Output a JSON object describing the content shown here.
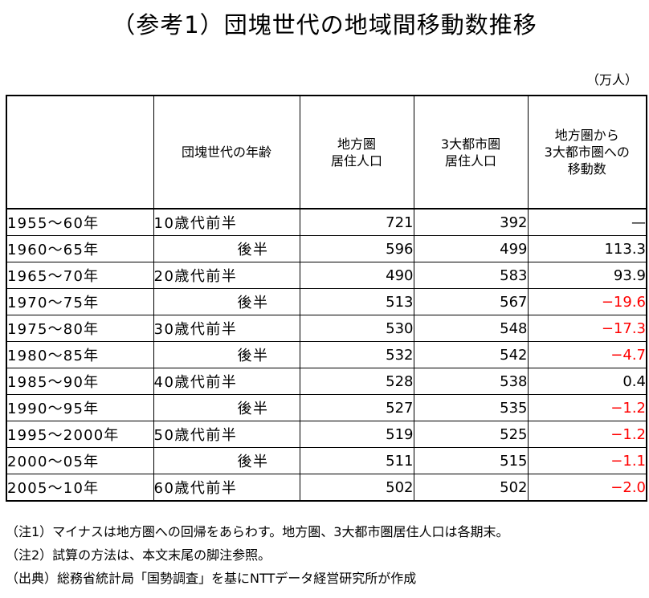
{
  "title": "（参考1）団塊世代の地域間移動数推移",
  "unit": "（万人）",
  "table": {
    "headers": {
      "age": "団塊世代の年齢",
      "rural": [
        "地方圏",
        "居住人口"
      ],
      "metro": [
        "3大都市圏",
        "居住人口"
      ],
      "migration": [
        "地方圏から",
        "3大都市圏への",
        "移動数"
      ]
    },
    "rows": [
      {
        "period": "1955～60年",
        "age": "10歳代前半",
        "rural": "721",
        "metro": "392",
        "migration": "—",
        "negative": false,
        "half": false
      },
      {
        "period": "1960～65年",
        "age": "後半",
        "rural": "596",
        "metro": "499",
        "migration": "113.3",
        "negative": false,
        "half": true
      },
      {
        "period": "1965～70年",
        "age": "20歳代前半",
        "rural": "490",
        "metro": "583",
        "migration": "93.9",
        "negative": false,
        "half": false
      },
      {
        "period": "1970～75年",
        "age": "後半",
        "rural": "513",
        "metro": "567",
        "migration": "−19.6",
        "negative": true,
        "half": true
      },
      {
        "period": "1975～80年",
        "age": "30歳代前半",
        "rural": "530",
        "metro": "548",
        "migration": "−17.3",
        "negative": true,
        "half": false
      },
      {
        "period": "1980～85年",
        "age": "後半",
        "rural": "532",
        "metro": "542",
        "migration": "−4.7",
        "negative": true,
        "half": true
      },
      {
        "period": "1985～90年",
        "age": "40歳代前半",
        "rural": "528",
        "metro": "538",
        "migration": "0.4",
        "negative": false,
        "half": false
      },
      {
        "period": "1990～95年",
        "age": "後半",
        "rural": "527",
        "metro": "535",
        "migration": "−1.2",
        "negative": true,
        "half": true
      },
      {
        "period": "1995～2000年",
        "age": "50歳代前半",
        "rural": "519",
        "metro": "525",
        "migration": "−1.2",
        "negative": true,
        "half": false
      },
      {
        "period": "2000～05年",
        "age": "後半",
        "rural": "511",
        "metro": "515",
        "migration": "−1.1",
        "negative": true,
        "half": true
      },
      {
        "period": "2005～10年",
        "age": "60歳代前半",
        "rural": "502",
        "metro": "502",
        "migration": "−2.0",
        "negative": true,
        "half": false
      }
    ]
  },
  "notes": [
    "（注1）マイナスは地方圏への回帰をあらわす。地方圏、3大都市圏居住人口は各期末。",
    "（注2）試算の方法は、本文末尾の脚注参照。",
    "（出典）総務省統計局「国勢調査」を基にNTTデータ経営研究所が作成"
  ],
  "colors": {
    "negative": "#ff0000",
    "text": "#000000",
    "border": "#000000"
  }
}
